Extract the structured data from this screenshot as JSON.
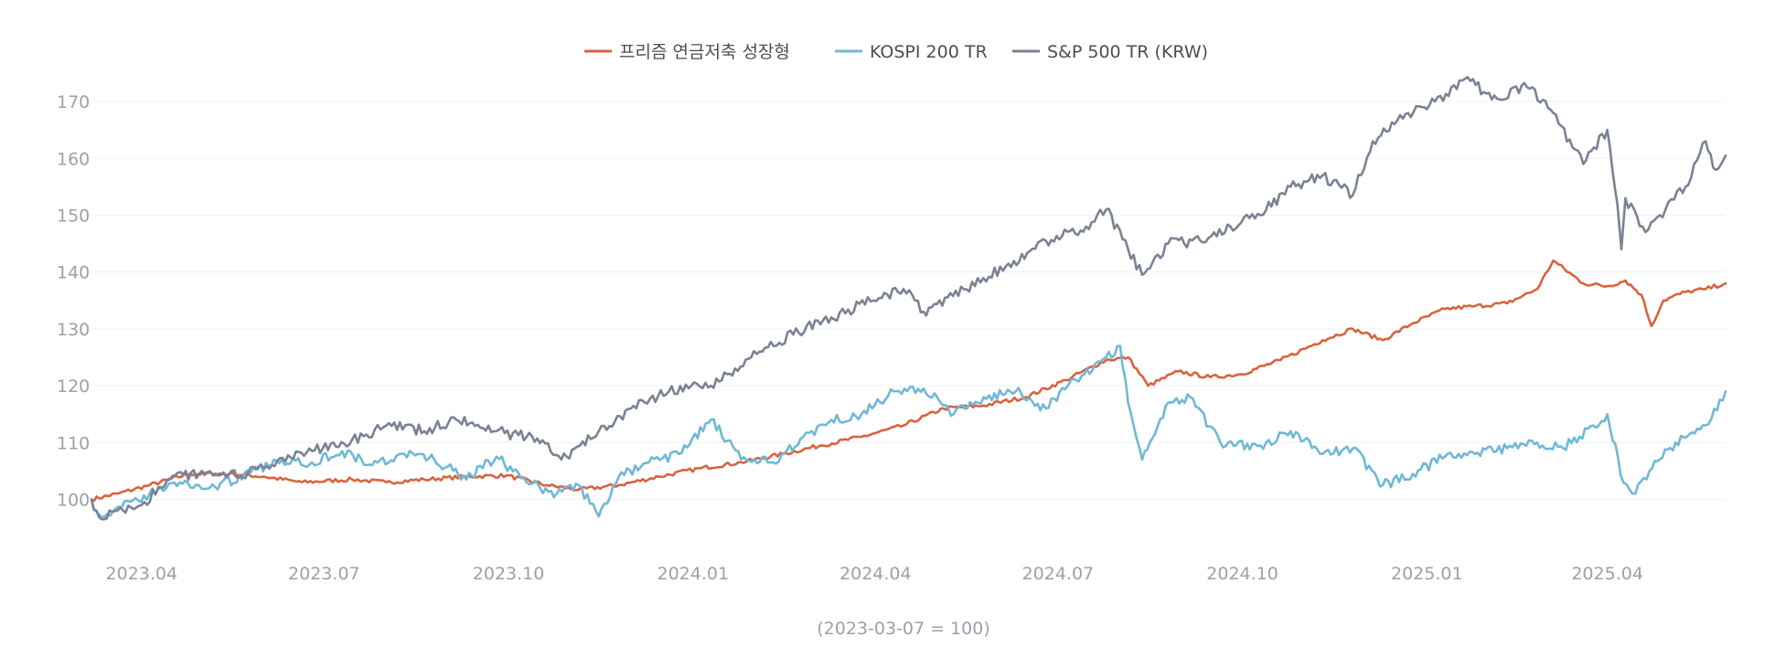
{
  "colors": {
    "background": "#ffffff",
    "grid": "#eef0f3",
    "tick_text": "#9aa1ab",
    "legend_text": "#4a4f57"
  },
  "chart_data": {
    "type": "line",
    "caption": "(2023-03-07 = 100)",
    "legend_position": "top-center",
    "grid": "horizontal",
    "ylim": [
      93,
      175
    ],
    "yticks": [
      100,
      110,
      120,
      130,
      140,
      150,
      160,
      170
    ],
    "xlim": [
      "2023-03-07",
      "2025-05-30"
    ],
    "xticks": [
      {
        "date": "2023-04-01",
        "label": "2023.04"
      },
      {
        "date": "2023-07-01",
        "label": "2023.07"
      },
      {
        "date": "2023-10-01",
        "label": "2023.10"
      },
      {
        "date": "2024-01-01",
        "label": "2024.01"
      },
      {
        "date": "2024-04-01",
        "label": "2024.04"
      },
      {
        "date": "2024-07-01",
        "label": "2024.07"
      },
      {
        "date": "2024-10-01",
        "label": "2024.10"
      },
      {
        "date": "2025-01-01",
        "label": "2025.01"
      },
      {
        "date": "2025-04-01",
        "label": "2025.04"
      }
    ],
    "series": [
      {
        "name": "프리즘 연금저축 성장형",
        "color": "#d9633f",
        "points": [
          [
            "2023-03-07",
            100
          ],
          [
            "2023-03-20",
            101
          ],
          [
            "2023-04-05",
            102.5
          ],
          [
            "2023-04-25",
            104.5
          ],
          [
            "2023-05-15",
            104.5
          ],
          [
            "2023-06-01",
            104
          ],
          [
            "2023-06-20",
            103
          ],
          [
            "2023-07-15",
            103.5
          ],
          [
            "2023-08-01",
            103
          ],
          [
            "2023-08-20",
            103.5
          ],
          [
            "2023-09-10",
            104
          ],
          [
            "2023-09-30",
            104.2
          ],
          [
            "2023-10-20",
            102.5
          ],
          [
            "2023-11-05",
            101.7
          ],
          [
            "2023-11-25",
            102.5
          ],
          [
            "2023-12-15",
            104
          ],
          [
            "2024-01-05",
            105.5
          ],
          [
            "2024-01-25",
            106.5
          ],
          [
            "2024-02-15",
            108
          ],
          [
            "2024-03-05",
            109.5
          ],
          [
            "2024-03-25",
            111
          ],
          [
            "2024-04-15",
            113
          ],
          [
            "2024-05-05",
            116
          ],
          [
            "2024-05-25",
            116.5
          ],
          [
            "2024-06-15",
            118
          ],
          [
            "2024-07-05",
            121
          ],
          [
            "2024-07-25",
            124.5
          ],
          [
            "2024-08-05",
            125
          ],
          [
            "2024-08-15",
            120
          ],
          [
            "2024-08-30",
            122.5
          ],
          [
            "2024-09-15",
            121.5
          ],
          [
            "2024-09-30",
            122
          ],
          [
            "2024-10-20",
            124.5
          ],
          [
            "2024-11-10",
            128
          ],
          [
            "2024-11-25",
            130
          ],
          [
            "2024-12-10",
            128
          ],
          [
            "2024-12-25",
            131
          ],
          [
            "2025-01-10",
            133.5
          ],
          [
            "2025-01-25",
            134
          ],
          [
            "2025-02-10",
            134.5
          ],
          [
            "2025-02-25",
            137
          ],
          [
            "2025-03-05",
            142
          ],
          [
            "2025-03-20",
            138
          ],
          [
            "2025-04-01",
            137.5
          ],
          [
            "2025-04-10",
            138.5
          ],
          [
            "2025-04-18",
            136
          ],
          [
            "2025-04-23",
            130.5
          ],
          [
            "2025-04-29",
            135
          ],
          [
            "2025-05-10",
            136.5
          ],
          [
            "2025-05-20",
            137
          ],
          [
            "2025-05-30",
            138
          ]
        ]
      },
      {
        "name": "KOSPI 200 TR",
        "color": "#6fb9d6",
        "points": [
          [
            "2023-03-07",
            100
          ],
          [
            "2023-03-12",
            97
          ],
          [
            "2023-03-22",
            98.5
          ],
          [
            "2023-04-05",
            101
          ],
          [
            "2023-04-20",
            103
          ],
          [
            "2023-05-05",
            102
          ],
          [
            "2023-05-25",
            104.5
          ],
          [
            "2023-06-10",
            107
          ],
          [
            "2023-06-25",
            106.5
          ],
          [
            "2023-07-10",
            108.5
          ],
          [
            "2023-07-25",
            106
          ],
          [
            "2023-08-10",
            108
          ],
          [
            "2023-08-25",
            107
          ],
          [
            "2023-09-10",
            103.5
          ],
          [
            "2023-09-25",
            107.5
          ],
          [
            "2023-10-10",
            103
          ],
          [
            "2023-10-25",
            101
          ],
          [
            "2023-11-05",
            102.5
          ],
          [
            "2023-11-15",
            97
          ],
          [
            "2023-11-25",
            104
          ],
          [
            "2023-12-10",
            106.5
          ],
          [
            "2023-12-25",
            108
          ],
          [
            "2024-01-10",
            114
          ],
          [
            "2024-01-25",
            107
          ],
          [
            "2024-02-10",
            106.5
          ],
          [
            "2024-02-25",
            111
          ],
          [
            "2024-03-10",
            114
          ],
          [
            "2024-03-25",
            115
          ],
          [
            "2024-04-10",
            119
          ],
          [
            "2024-04-25",
            119.5
          ],
          [
            "2024-05-10",
            115
          ],
          [
            "2024-05-25",
            118
          ],
          [
            "2024-06-10",
            119
          ],
          [
            "2024-06-25",
            116
          ],
          [
            "2024-07-10",
            121
          ],
          [
            "2024-07-25",
            125
          ],
          [
            "2024-08-01",
            127
          ],
          [
            "2024-08-05",
            117
          ],
          [
            "2024-08-12",
            107
          ],
          [
            "2024-08-25",
            117
          ],
          [
            "2024-09-05",
            118
          ],
          [
            "2024-09-20",
            110
          ],
          [
            "2024-10-10",
            109.5
          ],
          [
            "2024-10-25",
            112
          ],
          [
            "2024-11-10",
            108
          ],
          [
            "2024-11-25",
            109
          ],
          [
            "2024-12-10",
            102.5
          ],
          [
            "2024-12-25",
            104.5
          ],
          [
            "2025-01-10",
            107.5
          ],
          [
            "2025-01-25",
            108
          ],
          [
            "2025-02-10",
            109
          ],
          [
            "2025-02-25",
            110
          ],
          [
            "2025-03-10",
            109
          ],
          [
            "2025-03-25",
            113
          ],
          [
            "2025-04-01",
            115
          ],
          [
            "2025-04-09",
            103
          ],
          [
            "2025-04-15",
            101
          ],
          [
            "2025-04-22",
            105
          ],
          [
            "2025-05-05",
            110
          ],
          [
            "2025-05-20",
            113
          ],
          [
            "2025-05-30",
            119
          ]
        ]
      },
      {
        "name": "S&P 500 TR (KRW)",
        "color": "#7a8394",
        "points": [
          [
            "2023-03-07",
            100
          ],
          [
            "2023-03-12",
            96.5
          ],
          [
            "2023-03-20",
            98
          ],
          [
            "2023-04-01",
            99
          ],
          [
            "2023-04-15",
            103.5
          ],
          [
            "2023-05-01",
            105
          ],
          [
            "2023-05-20",
            104
          ],
          [
            "2023-06-05",
            106
          ],
          [
            "2023-06-25",
            108.5
          ],
          [
            "2023-07-15",
            110.5
          ],
          [
            "2023-08-01",
            113
          ],
          [
            "2023-08-20",
            112
          ],
          [
            "2023-09-05",
            114
          ],
          [
            "2023-09-25",
            112
          ],
          [
            "2023-10-10",
            111
          ],
          [
            "2023-10-30",
            107.5
          ],
          [
            "2023-11-15",
            112
          ],
          [
            "2023-12-01",
            116
          ],
          [
            "2023-12-20",
            119
          ],
          [
            "2024-01-10",
            120
          ],
          [
            "2024-01-30",
            125
          ],
          [
            "2024-02-20",
            129
          ],
          [
            "2024-03-10",
            132
          ],
          [
            "2024-03-31",
            135
          ],
          [
            "2024-04-15",
            137
          ],
          [
            "2024-04-25",
            133
          ],
          [
            "2024-05-15",
            137
          ],
          [
            "2024-06-05",
            141
          ],
          [
            "2024-06-25",
            145.5
          ],
          [
            "2024-07-15",
            148
          ],
          [
            "2024-07-25",
            151
          ],
          [
            "2024-08-05",
            144
          ],
          [
            "2024-08-12",
            139.5
          ],
          [
            "2024-08-25",
            145
          ],
          [
            "2024-09-10",
            145.5
          ],
          [
            "2024-09-25",
            148
          ],
          [
            "2024-10-10",
            150
          ],
          [
            "2024-10-25",
            155
          ],
          [
            "2024-11-10",
            157
          ],
          [
            "2024-11-25",
            153.5
          ],
          [
            "2024-12-05",
            163
          ],
          [
            "2024-12-20",
            167
          ],
          [
            "2025-01-05",
            170
          ],
          [
            "2025-01-20",
            174
          ],
          [
            "2025-02-05",
            170.5
          ],
          [
            "2025-02-20",
            172.5
          ],
          [
            "2025-03-05",
            168
          ],
          [
            "2025-03-20",
            159
          ],
          [
            "2025-04-01",
            165
          ],
          [
            "2025-04-06",
            152
          ],
          [
            "2025-04-08",
            144
          ],
          [
            "2025-04-10",
            153
          ],
          [
            "2025-04-20",
            147
          ],
          [
            "2025-04-30",
            151
          ],
          [
            "2025-05-10",
            155
          ],
          [
            "2025-05-20",
            163
          ],
          [
            "2025-05-25",
            158
          ],
          [
            "2025-05-30",
            160.5
          ]
        ]
      }
    ]
  }
}
